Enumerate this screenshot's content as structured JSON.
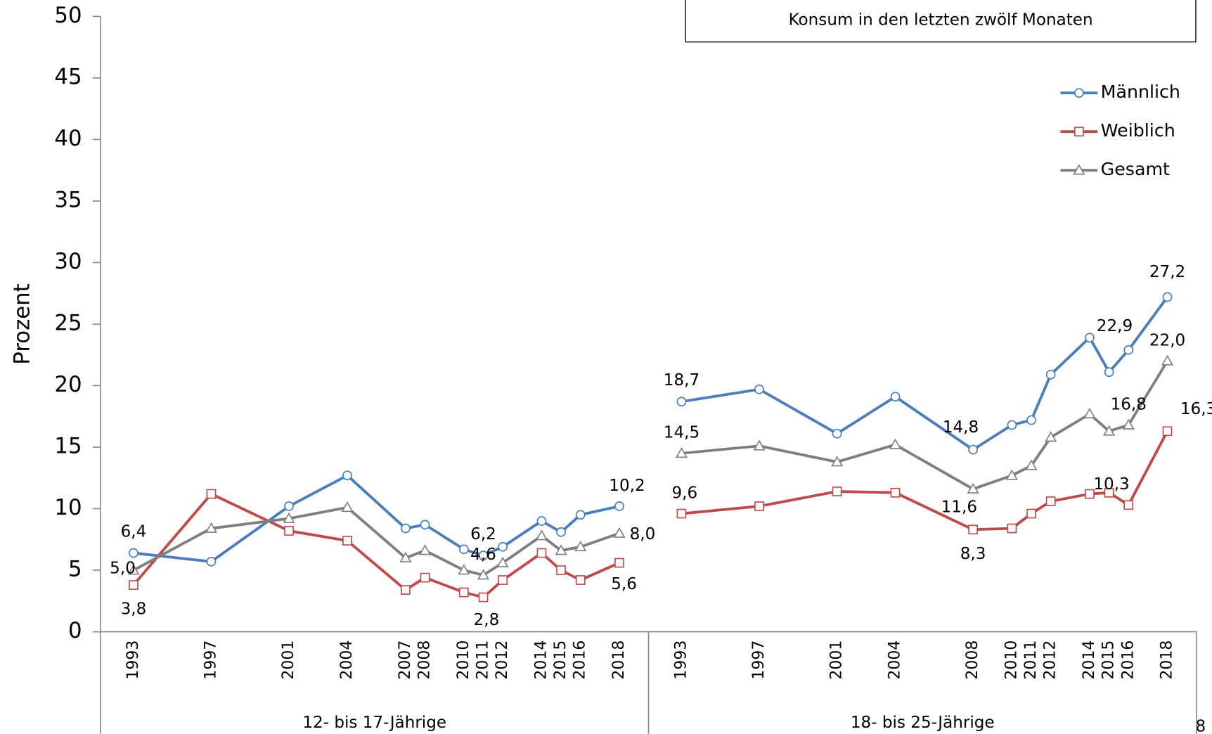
{
  "chart_data": {
    "type": "line",
    "title": "Konsum in den letzten zwölf Monaten",
    "y_label": "Prozent",
    "page_number": "8",
    "ylim": [
      0,
      50
    ],
    "yticks": [
      0,
      5,
      10,
      15,
      20,
      25,
      30,
      35,
      40,
      45,
      50
    ],
    "xlim": [
      1991.3,
      2019.5
    ],
    "legend": "upper right",
    "groups": [
      {
        "name": "12- bis 17-Jährige",
        "x": [
          1993,
          1997,
          2001,
          2004,
          2007,
          2008,
          2010,
          2011,
          2012,
          2014,
          2015,
          2016,
          2018
        ]
      },
      {
        "name": "18- bis 25-Jährige",
        "x": [
          1993,
          1997,
          2001,
          2004,
          2008,
          2010,
          2011,
          2012,
          2014,
          2015,
          2016,
          2018
        ]
      }
    ],
    "series": [
      {
        "name": "Männlich",
        "color": "#4a7ebb",
        "marker": "circle",
        "values": [
          [
            6.4,
            5.7,
            10.2,
            12.7,
            8.4,
            8.7,
            6.7,
            6.2,
            6.9,
            9.0,
            8.1,
            9.5,
            10.2
          ],
          [
            18.7,
            19.7,
            16.1,
            19.1,
            14.8,
            16.8,
            17.2,
            20.9,
            23.9,
            21.1,
            22.9,
            27.2
          ]
        ],
        "value_labels": [
          [
            "6,4",
            null,
            null,
            null,
            null,
            null,
            null,
            "6,2",
            null,
            null,
            null,
            null,
            "10,2"
          ],
          [
            "18,7",
            null,
            null,
            null,
            "14,8",
            null,
            null,
            null,
            null,
            null,
            "22,9",
            "27,2"
          ]
        ]
      },
      {
        "name": "Weiblich",
        "color": "#be4b48",
        "marker": "square",
        "values": [
          [
            3.8,
            11.2,
            8.2,
            7.4,
            3.4,
            4.4,
            3.2,
            2.8,
            4.2,
            6.4,
            5.0,
            4.2,
            5.6
          ],
          [
            9.6,
            10.2,
            11.4,
            11.3,
            8.3,
            8.4,
            9.6,
            10.6,
            11.2,
            11.3,
            10.3,
            16.3
          ]
        ],
        "value_labels": [
          [
            "3,8",
            null,
            null,
            null,
            null,
            null,
            null,
            "2,8",
            null,
            null,
            null,
            null,
            "5,6"
          ],
          [
            "9,6",
            null,
            null,
            null,
            "8,3",
            null,
            null,
            null,
            null,
            null,
            "10,3",
            "16,3"
          ]
        ]
      },
      {
        "name": "Gesamt",
        "color": "#7f7f7f",
        "marker": "triangle",
        "values": [
          [
            5.0,
            8.4,
            9.2,
            10.1,
            6.0,
            6.6,
            5.0,
            4.6,
            5.6,
            7.8,
            6.6,
            6.9,
            8.0
          ],
          [
            14.5,
            15.1,
            13.8,
            15.2,
            11.6,
            12.7,
            13.5,
            15.8,
            17.7,
            16.3,
            16.8,
            22.0
          ]
        ],
        "value_labels": [
          [
            "5,0",
            null,
            null,
            null,
            null,
            null,
            null,
            "4,6",
            null,
            null,
            null,
            null,
            "8,0"
          ],
          [
            "14,5",
            null,
            null,
            null,
            "11,6",
            null,
            null,
            null,
            null,
            null,
            "16,8",
            "22,0"
          ]
        ]
      }
    ]
  }
}
